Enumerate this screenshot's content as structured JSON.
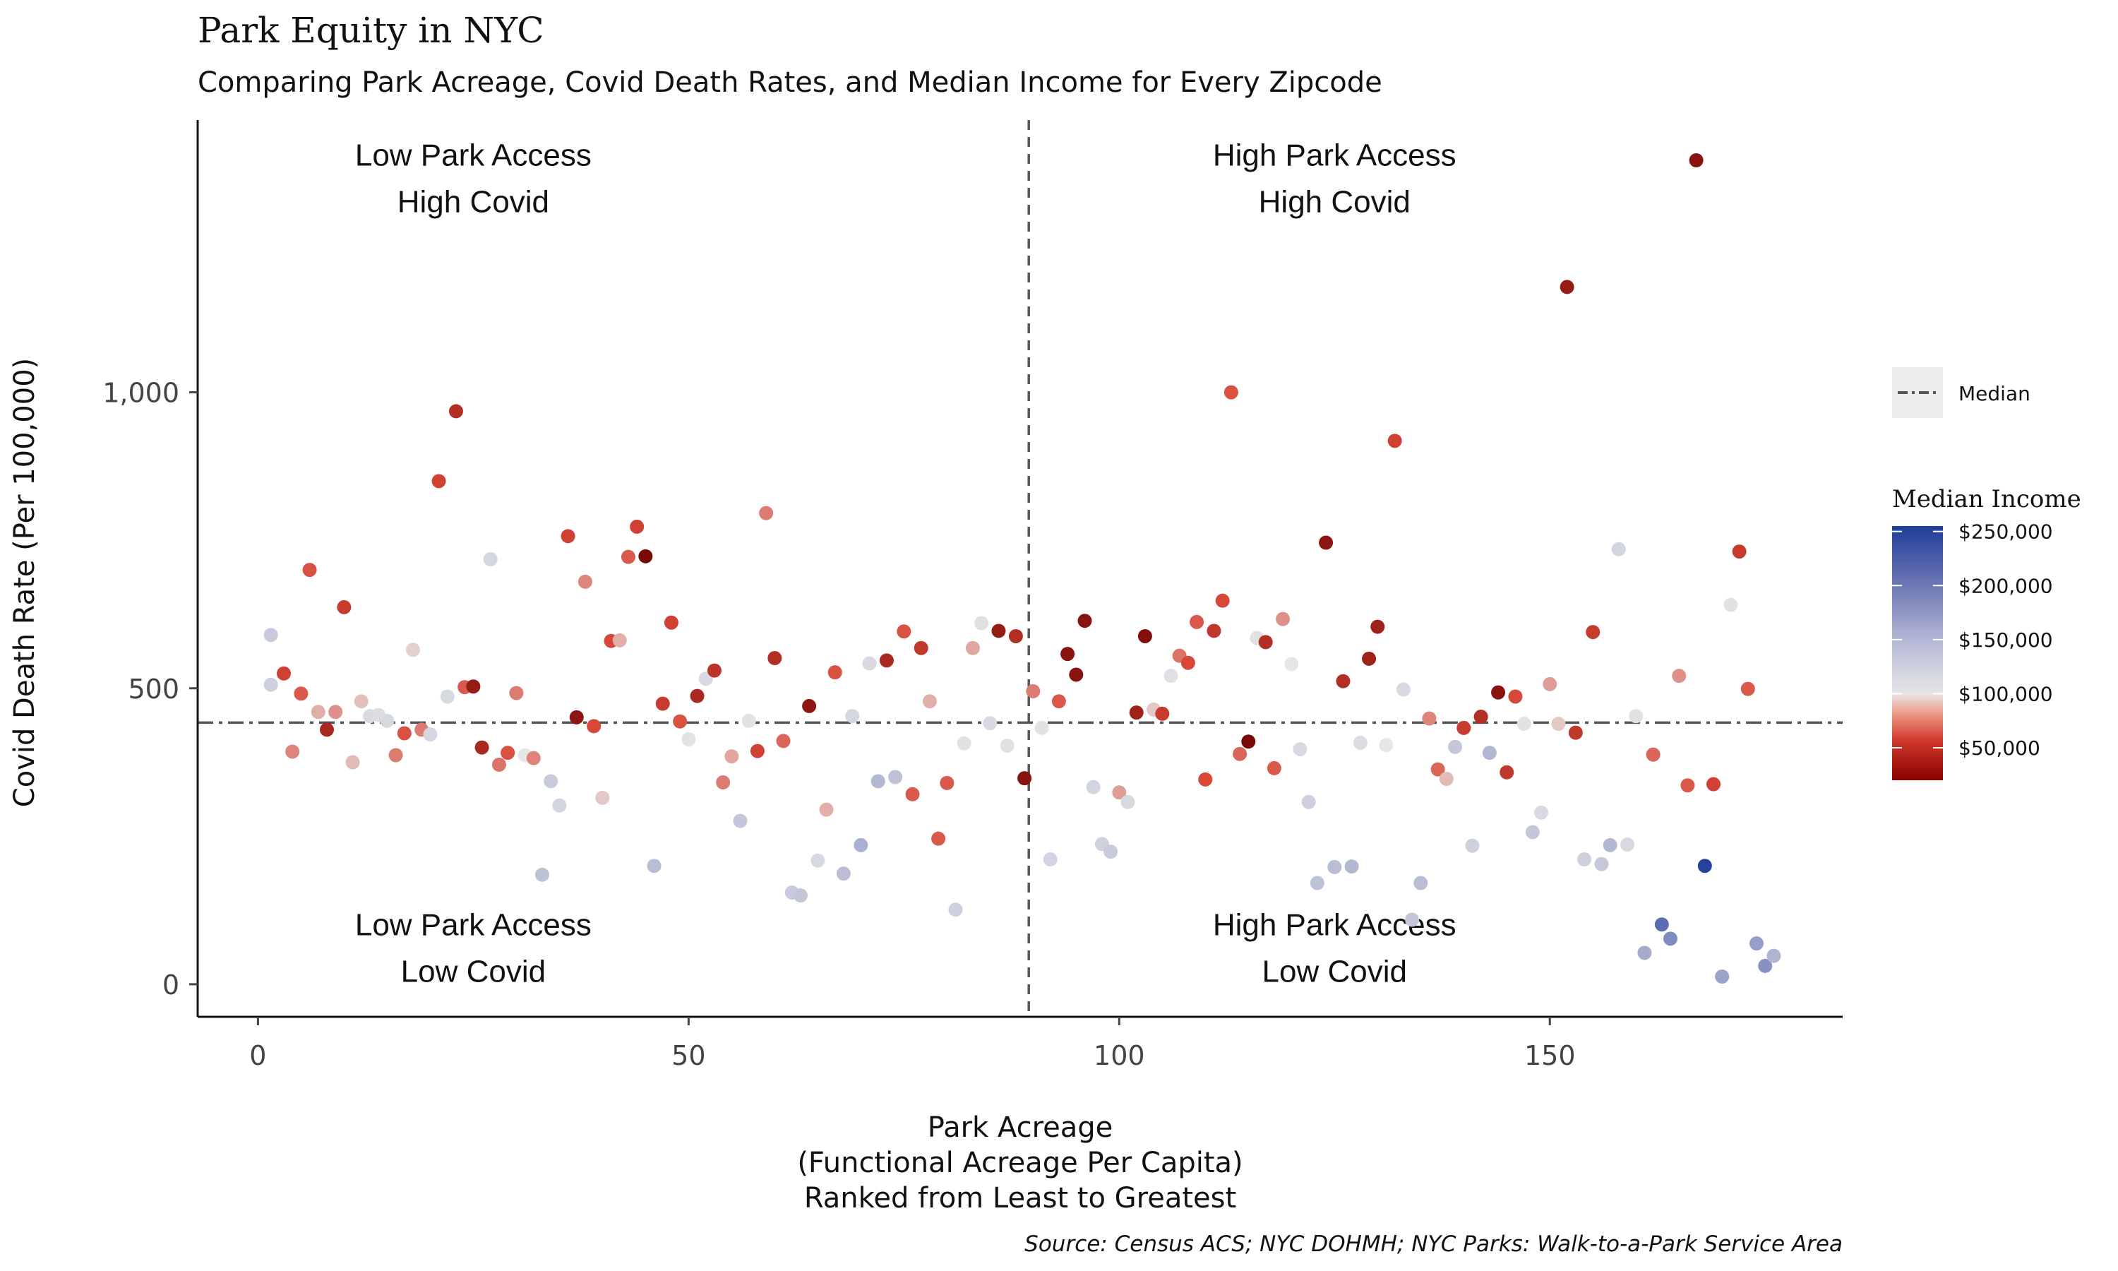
{
  "chart_data": {
    "type": "scatter",
    "title": "Park Equity in NYC",
    "subtitle": "Comparing Park Acreage, Covid Death Rates, and Median Income for Every Zipcode",
    "xlabel_lines": [
      "Park Acreage",
      "(Functional Acreage Per Capita)",
      "Ranked from Least to Greatest"
    ],
    "ylabel": "Covid Death Rate (Per 100,000)",
    "caption": "Source: Census ACS; NYC DOHMH; NYC Parks: Walk-to-a-Park Service Area",
    "xlim": [
      -7,
      184
    ],
    "ylim": [
      -55,
      1460
    ],
    "x_ticks": [
      {
        "value": 0,
        "label": "0"
      },
      {
        "value": 50,
        "label": "50"
      },
      {
        "value": 100,
        "label": "100"
      },
      {
        "value": 150,
        "label": "150"
      }
    ],
    "y_ticks": [
      {
        "value": 0,
        "label": "0"
      },
      {
        "value": 500,
        "label": "500"
      },
      {
        "value": 1000,
        "label": "1,000"
      }
    ],
    "median_x": 89.5,
    "median_y": 442,
    "grid": false,
    "quadrant_labels": [
      {
        "lines": [
          "Low Park Access",
          "High Covid"
        ],
        "x": 25,
        "y": 1383
      },
      {
        "lines": [
          "High Park Access",
          "High Covid"
        ],
        "x": 125,
        "y": 1383
      },
      {
        "lines": [
          "Low Park Access",
          "Low Covid"
        ],
        "x": 25,
        "y": 83
      },
      {
        "lines": [
          "High Park Access",
          "Low Covid"
        ],
        "x": 125,
        "y": 83
      }
    ],
    "legend": {
      "placement": "right",
      "linetype_label": "Median",
      "color_title": "Median Income",
      "color_ticks": [
        {
          "value": 250000,
          "label": "$250,000"
        },
        {
          "value": 200000,
          "label": "$200,000"
        },
        {
          "value": 150000,
          "label": "$150,000"
        },
        {
          "value": 100000,
          "label": "$100,000"
        },
        {
          "value": 50000,
          "label": "$50,000"
        }
      ],
      "income_range": [
        20000,
        255000
      ]
    },
    "color_scale": {
      "low_color": "#6b0000",
      "mid_color": "#e6e6e6",
      "high_color": "#1f3d99",
      "mid_value": 95000
    },
    "points": [
      {
        "x": 1.5,
        "y": 590,
        "income": 125000
      },
      {
        "x": 1.5,
        "y": 506,
        "income": 120000
      },
      {
        "x": 3,
        "y": 525,
        "income": 55000
      },
      {
        "x": 4,
        "y": 393,
        "income": 72000
      },
      {
        "x": 5,
        "y": 491,
        "income": 62000
      },
      {
        "x": 6,
        "y": 700,
        "income": 60000
      },
      {
        "x": 7,
        "y": 460,
        "income": 82000
      },
      {
        "x": 8,
        "y": 430,
        "income": 42000
      },
      {
        "x": 9,
        "y": 460,
        "income": 75000
      },
      {
        "x": 10,
        "y": 637,
        "income": 52000
      },
      {
        "x": 11,
        "y": 375,
        "income": 85000
      },
      {
        "x": 12,
        "y": 478,
        "income": 86000
      },
      {
        "x": 13,
        "y": 453,
        "income": 108000
      },
      {
        "x": 14,
        "y": 455,
        "income": 105000
      },
      {
        "x": 15,
        "y": 445,
        "income": 110000
      },
      {
        "x": 16,
        "y": 387,
        "income": 70000
      },
      {
        "x": 17,
        "y": 424,
        "income": 60000
      },
      {
        "x": 18,
        "y": 565,
        "income": 90000
      },
      {
        "x": 19,
        "y": 430,
        "income": 70000
      },
      {
        "x": 20,
        "y": 422,
        "income": 112000
      },
      {
        "x": 21,
        "y": 850,
        "income": 55000
      },
      {
        "x": 22,
        "y": 486,
        "income": 110000
      },
      {
        "x": 23,
        "y": 968,
        "income": 45000
      },
      {
        "x": 24,
        "y": 502,
        "income": 62000
      },
      {
        "x": 25,
        "y": 503,
        "income": 35000
      },
      {
        "x": 26,
        "y": 400,
        "income": 42000
      },
      {
        "x": 27,
        "y": 718,
        "income": 112000
      },
      {
        "x": 28,
        "y": 371,
        "income": 68000
      },
      {
        "x": 29,
        "y": 391,
        "income": 60000
      },
      {
        "x": 30,
        "y": 492,
        "income": 70000
      },
      {
        "x": 31,
        "y": 387,
        "income": 95000
      },
      {
        "x": 32,
        "y": 382,
        "income": 72000
      },
      {
        "x": 33,
        "y": 185,
        "income": 135000
      },
      {
        "x": 34,
        "y": 343,
        "income": 125000
      },
      {
        "x": 35,
        "y": 302,
        "income": 115000
      },
      {
        "x": 36,
        "y": 757,
        "income": 55000
      },
      {
        "x": 37,
        "y": 451,
        "income": 32000
      },
      {
        "x": 38,
        "y": 680,
        "income": 72000
      },
      {
        "x": 39,
        "y": 436,
        "income": 58000
      },
      {
        "x": 40,
        "y": 315,
        "income": 88000
      },
      {
        "x": 41,
        "y": 580,
        "income": 58000
      },
      {
        "x": 42,
        "y": 581,
        "income": 82000
      },
      {
        "x": 43,
        "y": 722,
        "income": 62000
      },
      {
        "x": 44,
        "y": 773,
        "income": 55000
      },
      {
        "x": 45,
        "y": 723,
        "income": 25000
      },
      {
        "x": 46,
        "y": 200,
        "income": 140000
      },
      {
        "x": 47,
        "y": 474,
        "income": 52000
      },
      {
        "x": 48,
        "y": 611,
        "income": 55000
      },
      {
        "x": 49,
        "y": 444,
        "income": 60000
      },
      {
        "x": 50,
        "y": 414,
        "income": 100000
      },
      {
        "x": 51,
        "y": 487,
        "income": 42000
      },
      {
        "x": 52,
        "y": 516,
        "income": 108000
      },
      {
        "x": 53,
        "y": 530,
        "income": 48000
      },
      {
        "x": 54,
        "y": 341,
        "income": 70000
      },
      {
        "x": 55,
        "y": 385,
        "income": 80000
      },
      {
        "x": 56,
        "y": 276,
        "income": 130000
      },
      {
        "x": 57,
        "y": 445,
        "income": 100000
      },
      {
        "x": 58,
        "y": 394,
        "income": 55000
      },
      {
        "x": 59,
        "y": 796,
        "income": 70000
      },
      {
        "x": 60,
        "y": 551,
        "income": 45000
      },
      {
        "x": 61,
        "y": 411,
        "income": 65000
      },
      {
        "x": 62,
        "y": 155,
        "income": 125000
      },
      {
        "x": 63,
        "y": 150,
        "income": 130000
      },
      {
        "x": 64,
        "y": 470,
        "income": 32000
      },
      {
        "x": 65,
        "y": 209,
        "income": 110000
      },
      {
        "x": 66,
        "y": 295,
        "income": 82000
      },
      {
        "x": 67,
        "y": 527,
        "income": 60000
      },
      {
        "x": 68,
        "y": 187,
        "income": 140000
      },
      {
        "x": 69,
        "y": 453,
        "income": 112000
      },
      {
        "x": 70,
        "y": 235,
        "income": 155000
      },
      {
        "x": 71,
        "y": 542,
        "income": 108000
      },
      {
        "x": 72,
        "y": 343,
        "income": 145000
      },
      {
        "x": 73,
        "y": 547,
        "income": 42000
      },
      {
        "x": 74,
        "y": 350,
        "income": 135000
      },
      {
        "x": 75,
        "y": 596,
        "income": 60000
      },
      {
        "x": 76,
        "y": 321,
        "income": 62000
      },
      {
        "x": 77,
        "y": 568,
        "income": 50000
      },
      {
        "x": 78,
        "y": 478,
        "income": 82000
      },
      {
        "x": 79,
        "y": 246,
        "income": 62000
      },
      {
        "x": 80,
        "y": 340,
        "income": 62000
      },
      {
        "x": 81,
        "y": 126,
        "income": 120000
      },
      {
        "x": 82,
        "y": 407,
        "income": 100000
      },
      {
        "x": 83,
        "y": 568,
        "income": 80000
      },
      {
        "x": 84,
        "y": 610,
        "income": 102000
      },
      {
        "x": 85,
        "y": 441,
        "income": 108000
      },
      {
        "x": 86,
        "y": 597,
        "income": 35000
      },
      {
        "x": 87,
        "y": 403,
        "income": 100000
      },
      {
        "x": 88,
        "y": 588,
        "income": 45000
      },
      {
        "x": 89,
        "y": 348,
        "income": 30000
      },
      {
        "x": 90,
        "y": 495,
        "income": 70000
      },
      {
        "x": 91,
        "y": 433,
        "income": 100000
      },
      {
        "x": 92,
        "y": 211,
        "income": 115000
      },
      {
        "x": 93,
        "y": 478,
        "income": 62000
      },
      {
        "x": 94,
        "y": 558,
        "income": 30000
      },
      {
        "x": 95,
        "y": 523,
        "income": 30000
      },
      {
        "x": 96,
        "y": 614,
        "income": 30000
      },
      {
        "x": 97,
        "y": 333,
        "income": 115000
      },
      {
        "x": 98,
        "y": 237,
        "income": 118000
      },
      {
        "x": 99,
        "y": 224,
        "income": 125000
      },
      {
        "x": 100,
        "y": 324,
        "income": 78000
      },
      {
        "x": 101,
        "y": 308,
        "income": 110000
      },
      {
        "x": 102,
        "y": 459,
        "income": 38000
      },
      {
        "x": 103,
        "y": 588,
        "income": 28000
      },
      {
        "x": 104,
        "y": 464,
        "income": 88000
      },
      {
        "x": 105,
        "y": 457,
        "income": 52000
      },
      {
        "x": 106,
        "y": 521,
        "income": 102000
      },
      {
        "x": 107,
        "y": 555,
        "income": 68000
      },
      {
        "x": 108,
        "y": 543,
        "income": 58000
      },
      {
        "x": 109,
        "y": 612,
        "income": 62000
      },
      {
        "x": 110,
        "y": 346,
        "income": 58000
      },
      {
        "x": 111,
        "y": 597,
        "income": 50000
      },
      {
        "x": 112,
        "y": 648,
        "income": 58000
      },
      {
        "x": 113,
        "y": 1000,
        "income": 60000
      },
      {
        "x": 114,
        "y": 389,
        "income": 65000
      },
      {
        "x": 115,
        "y": 410,
        "income": 25000
      },
      {
        "x": 116,
        "y": 585,
        "income": 100000
      },
      {
        "x": 117,
        "y": 578,
        "income": 45000
      },
      {
        "x": 118,
        "y": 365,
        "income": 62000
      },
      {
        "x": 119,
        "y": 617,
        "income": 75000
      },
      {
        "x": 120,
        "y": 541,
        "income": 95000
      },
      {
        "x": 121,
        "y": 397,
        "income": 108000
      },
      {
        "x": 122,
        "y": 308,
        "income": 120000
      },
      {
        "x": 123,
        "y": 171,
        "income": 135000
      },
      {
        "x": 124,
        "y": 746,
        "income": 32000
      },
      {
        "x": 125,
        "y": 198,
        "income": 140000
      },
      {
        "x": 126,
        "y": 512,
        "income": 45000
      },
      {
        "x": 127,
        "y": 199,
        "income": 145000
      },
      {
        "x": 128,
        "y": 408,
        "income": 105000
      },
      {
        "x": 129,
        "y": 550,
        "income": 38000
      },
      {
        "x": 130,
        "y": 604,
        "income": 38000
      },
      {
        "x": 131,
        "y": 404,
        "income": 95000
      },
      {
        "x": 132,
        "y": 918,
        "income": 55000
      },
      {
        "x": 133,
        "y": 498,
        "income": 108000
      },
      {
        "x": 134,
        "y": 109,
        "income": 130000
      },
      {
        "x": 135,
        "y": 171,
        "income": 140000
      },
      {
        "x": 136,
        "y": 449,
        "income": 72000
      },
      {
        "x": 137,
        "y": 363,
        "income": 65000
      },
      {
        "x": 138,
        "y": 347,
        "income": 85000
      },
      {
        "x": 139,
        "y": 401,
        "income": 130000
      },
      {
        "x": 140,
        "y": 433,
        "income": 52000
      },
      {
        "x": 141,
        "y": 234,
        "income": 120000
      },
      {
        "x": 142,
        "y": 452,
        "income": 45000
      },
      {
        "x": 143,
        "y": 391,
        "income": 148000
      },
      {
        "x": 144,
        "y": 493,
        "income": 30000
      },
      {
        "x": 145,
        "y": 358,
        "income": 50000
      },
      {
        "x": 146,
        "y": 486,
        "income": 58000
      },
      {
        "x": 147,
        "y": 440,
        "income": 100000
      },
      {
        "x": 148,
        "y": 257,
        "income": 130000
      },
      {
        "x": 149,
        "y": 290,
        "income": 108000
      },
      {
        "x": 150,
        "y": 507,
        "income": 78000
      },
      {
        "x": 151,
        "y": 440,
        "income": 88000
      },
      {
        "x": 152,
        "y": 1178,
        "income": 35000
      },
      {
        "x": 153,
        "y": 425,
        "income": 50000
      },
      {
        "x": 154,
        "y": 211,
        "income": 120000
      },
      {
        "x": 155,
        "y": 595,
        "income": 52000
      },
      {
        "x": 156,
        "y": 203,
        "income": 128000
      },
      {
        "x": 157,
        "y": 235,
        "income": 145000
      },
      {
        "x": 158,
        "y": 735,
        "income": 115000
      },
      {
        "x": 159,
        "y": 236,
        "income": 110000
      },
      {
        "x": 160,
        "y": 453,
        "income": 100000
      },
      {
        "x": 161,
        "y": 53,
        "income": 160000
      },
      {
        "x": 162,
        "y": 388,
        "income": 65000
      },
      {
        "x": 163,
        "y": 101,
        "income": 215000
      },
      {
        "x": 164,
        "y": 77,
        "income": 190000
      },
      {
        "x": 165,
        "y": 521,
        "income": 75000
      },
      {
        "x": 166,
        "y": 336,
        "income": 62000
      },
      {
        "x": 167,
        "y": 1392,
        "income": 30000
      },
      {
        "x": 168,
        "y": 200,
        "income": 250000
      },
      {
        "x": 169,
        "y": 338,
        "income": 55000
      },
      {
        "x": 170,
        "y": 13,
        "income": 170000
      },
      {
        "x": 171,
        "y": 641,
        "income": 100000
      },
      {
        "x": 172,
        "y": 731,
        "income": 52000
      },
      {
        "x": 173,
        "y": 499,
        "income": 62000
      },
      {
        "x": 174,
        "y": 69,
        "income": 175000
      },
      {
        "x": 175,
        "y": 31,
        "income": 185000
      },
      {
        "x": 176,
        "y": 48,
        "income": 150000
      }
    ]
  }
}
